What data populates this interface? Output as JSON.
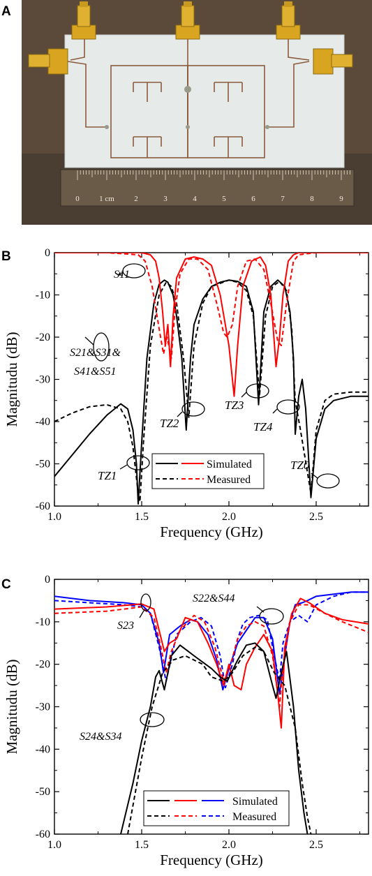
{
  "panels": {
    "a": {
      "letter": "A"
    },
    "b": {
      "letter": "B"
    },
    "c": {
      "letter": "C"
    }
  },
  "photo": {
    "ruler_labels": [
      "0",
      "1 cm",
      "2",
      "3",
      "4",
      "5",
      "6",
      "7",
      "8",
      "9"
    ],
    "colors": {
      "background": "#5b4a3a",
      "board": "#e6ebea",
      "copper": "#8a5a3a",
      "gold": "#d9a520"
    }
  },
  "chart_data": [
    {
      "type": "line",
      "xlabel": "Frequency (GHz)",
      "ylabel": "Magnitudu (dB)",
      "xlim": [
        1.0,
        2.8
      ],
      "ylim": [
        -60,
        0
      ],
      "xticks": [
        1.0,
        1.5,
        2.0,
        2.5
      ],
      "xtick_labels": [
        "1.0",
        "1.5",
        "2.0",
        "2.5"
      ],
      "yticks": [
        0,
        -10,
        -20,
        -30,
        -40,
        -50,
        -60
      ],
      "ytick_labels": [
        "0",
        "-10",
        "-20",
        "-30",
        "-40",
        "-50",
        "-60"
      ],
      "legend": {
        "placement": "bottom-right",
        "entries": [
          "Simulated",
          "Measured"
        ]
      },
      "annotations": {
        "s11": "S11",
        "s21_line1": "S21&S31&",
        "s21_line2": "S41&S51",
        "tz1": "TZ1",
        "tz2": "TZ2",
        "tz3": "TZ3",
        "tz4": "TZ4",
        "tz0": "TZ0"
      },
      "colors": {
        "transmission": "#000000",
        "reflection": "#ff0000"
      },
      "series": [
        {
          "x": [
            1.0,
            1.1,
            1.2,
            1.3,
            1.38,
            1.42,
            1.45,
            1.47,
            1.48,
            1.5,
            1.53,
            1.57,
            1.6,
            1.63,
            1.65,
            1.68,
            1.7,
            1.73,
            1.755,
            1.78,
            1.8,
            1.85,
            1.9,
            1.95,
            2.0,
            2.05,
            2.1,
            2.14,
            2.17,
            2.2,
            2.24,
            2.28,
            2.32,
            2.35,
            2.37,
            2.38,
            2.4,
            2.42,
            2.44,
            2.47,
            2.5,
            2.55,
            2.6,
            2.7,
            2.8
          ],
          "values": [
            -53,
            -48,
            -43,
            -38.5,
            -35.8,
            -37,
            -42,
            -50,
            -59.5,
            -45,
            -25,
            -12,
            -7.5,
            -6.5,
            -7,
            -10,
            -15,
            -25,
            -42,
            -25,
            -17,
            -11,
            -8,
            -7,
            -6.5,
            -6.8,
            -8,
            -14,
            -36,
            -14,
            -8,
            -6.5,
            -8,
            -14,
            -25,
            -43,
            -34,
            -30,
            -37,
            -58,
            -44,
            -37,
            -35,
            -34,
            -34
          ]
        },
        {
          "x": [
            1.0,
            1.1,
            1.2,
            1.3,
            1.38,
            1.42,
            1.45,
            1.48,
            1.49,
            1.51,
            1.55,
            1.6,
            1.64,
            1.67,
            1.7,
            1.74,
            1.77,
            1.8,
            1.85,
            1.9,
            2.0,
            2.05,
            2.1,
            2.14,
            2.175,
            2.21,
            2.25,
            2.29,
            2.33,
            2.36,
            2.38,
            2.41,
            2.45,
            2.47,
            2.5,
            2.55,
            2.6,
            2.7,
            2.8
          ],
          "values": [
            -40,
            -38,
            -36.5,
            -36,
            -37,
            -40,
            -46,
            -57,
            -59,
            -45,
            -22,
            -10,
            -7,
            -8,
            -12,
            -25,
            -39,
            -22,
            -12,
            -8,
            -6.5,
            -7,
            -9,
            -15,
            -34,
            -15,
            -8,
            -6.8,
            -9,
            -18,
            -35,
            -42,
            -52,
            -57,
            -42,
            -35,
            -33.5,
            -33,
            -33
          ]
        },
        {
          "x": [
            1.0,
            1.3,
            1.5,
            1.55,
            1.58,
            1.6,
            1.62,
            1.635,
            1.65,
            1.665,
            1.68,
            1.7,
            1.75,
            1.8,
            1.85,
            1.9,
            1.95,
            2.0,
            2.03,
            2.05,
            2.08,
            2.13,
            2.18,
            2.21,
            2.24,
            2.27,
            2.29,
            2.31,
            2.34,
            2.37,
            2.4,
            2.5,
            2.8
          ],
          "values": [
            0,
            0,
            0,
            -0.5,
            -2,
            -6,
            -14,
            -22,
            -17,
            -27,
            -15,
            -6,
            -1.5,
            -1,
            -1.5,
            -3,
            -10,
            -22,
            -34,
            -22,
            -8,
            -2,
            -1,
            -3,
            -10,
            -27,
            -20,
            -10,
            -2,
            -0.5,
            0,
            0,
            0
          ]
        },
        {
          "x": [
            1.0,
            1.3,
            1.48,
            1.52,
            1.56,
            1.6,
            1.625,
            1.645,
            1.67,
            1.69,
            1.72,
            1.77,
            1.82,
            1.88,
            1.93,
            1.97,
            1.99,
            2.02,
            2.05,
            2.1,
            2.15,
            2.2,
            2.24,
            2.28,
            2.3,
            2.33,
            2.37,
            2.4,
            2.5,
            2.8
          ],
          "values": [
            0,
            0,
            -0.5,
            -2,
            -8,
            -18,
            -24,
            -20,
            -25,
            -14,
            -5,
            -1.5,
            -1.5,
            -4,
            -12,
            -19,
            -20,
            -17,
            -8,
            -2,
            -1.5,
            -4,
            -12,
            -21,
            -22,
            -12,
            -2,
            -0.5,
            0,
            0
          ]
        }
      ]
    },
    {
      "type": "line",
      "xlabel": "Frequency (GHz)",
      "ylabel": "Magnitudu (dB)",
      "xlim": [
        1.0,
        2.8
      ],
      "ylim": [
        -60,
        0
      ],
      "xticks": [
        1.0,
        1.5,
        2.0,
        2.5
      ],
      "xtick_labels": [
        "1.0",
        "1.5",
        "2.0",
        "2.5"
      ],
      "yticks": [
        0,
        -10,
        -20,
        -30,
        -40,
        -50,
        -60
      ],
      "ytick_labels": [
        "0",
        "-10",
        "-20",
        "-30",
        "-40",
        "-50",
        "-60"
      ],
      "legend": {
        "placement": "bottom-right",
        "entries": [
          "Simulated",
          "Measured"
        ]
      },
      "annotations": {
        "s22": "S22&S44",
        "s23": "S23",
        "s24": "S24&S34"
      },
      "colors": {
        "black": "#000000",
        "red": "#ff0000",
        "blue": "#0000ff"
      },
      "series": [
        {
          "x": [
            1.0,
            1.2,
            1.4,
            1.5,
            1.55,
            1.6,
            1.625,
            1.66,
            1.72,
            1.78,
            1.82,
            1.88,
            1.93,
            1.965,
            2.0,
            2.05,
            2.1,
            2.15,
            2.2,
            2.25,
            2.29,
            2.32,
            2.35,
            2.38,
            2.42,
            2.45,
            2.5,
            2.6,
            2.7,
            2.8
          ],
          "values": [
            -4,
            -5,
            -5.5,
            -6,
            -8,
            -15,
            -22,
            -13,
            -11,
            -9.5,
            -10,
            -13,
            -19,
            -26,
            -21,
            -15,
            -12,
            -9,
            -9,
            -14,
            -27,
            -18,
            -10,
            -6,
            -5.5,
            -5,
            -4,
            -3.5,
            -3,
            -3
          ]
        },
        {
          "x": [
            1.0,
            1.2,
            1.4,
            1.5,
            1.55,
            1.6,
            1.64,
            1.7,
            1.78,
            1.84,
            1.9,
            1.95,
            1.98,
            2.02,
            2.05,
            2.08,
            2.12,
            2.17,
            2.22,
            2.26,
            2.29,
            2.31,
            2.35,
            2.4,
            2.45,
            2.5,
            2.6,
            2.7,
            2.8
          ],
          "values": [
            -5,
            -5.5,
            -6,
            -6.5,
            -8,
            -16,
            -24,
            -13,
            -10,
            -9,
            -11,
            -18,
            -25.5,
            -20,
            -14,
            -10.5,
            -9,
            -8.5,
            -9.5,
            -18,
            -24,
            -15,
            -10,
            -8.5,
            -10,
            -6,
            -4,
            -3,
            -3
          ]
        },
        {
          "x": [
            1.0,
            1.3,
            1.5,
            1.57,
            1.6,
            1.63,
            1.66,
            1.7,
            1.75,
            1.82,
            1.88,
            1.93,
            1.97,
            2.0,
            2.03,
            2.07,
            2.1,
            2.15,
            2.2,
            2.25,
            2.28,
            2.3,
            2.32,
            2.36,
            2.41,
            2.46,
            2.55,
            2.65,
            2.8
          ],
          "values": [
            -7,
            -6.5,
            -5.8,
            -7,
            -12,
            -17,
            -15,
            -14,
            -9,
            -10,
            -15,
            -20,
            -25,
            -20,
            -25,
            -26,
            -20,
            -16,
            -13,
            -17,
            -27,
            -35,
            -16,
            -8,
            -4.5,
            -5.5,
            -8,
            -9.5,
            -10.5
          ]
        },
        {
          "x": [
            1.0,
            1.3,
            1.5,
            1.57,
            1.61,
            1.64,
            1.67,
            1.72,
            1.8,
            1.86,
            1.92,
            1.97,
            2.01,
            2.05,
            2.1,
            2.15,
            2.2,
            2.25,
            2.29,
            2.31,
            2.35,
            2.4,
            2.46,
            2.55,
            2.65,
            2.8
          ],
          "values": [
            -8,
            -7.5,
            -6.5,
            -9,
            -16,
            -22,
            -17,
            -12,
            -8.5,
            -10,
            -16,
            -24,
            -20,
            -14,
            -11,
            -10,
            -11,
            -18,
            -30,
            -20,
            -10,
            -6,
            -6,
            -8,
            -10,
            -12.5
          ]
        },
        {
          "x": [
            1.38,
            1.45,
            1.5,
            1.55,
            1.58,
            1.6,
            1.63,
            1.67,
            1.72,
            1.8,
            1.9,
            1.95,
            1.99,
            2.05,
            2.1,
            2.15,
            2.2,
            2.25,
            2.27,
            2.3,
            2.33,
            2.37,
            2.4,
            2.43,
            2.45
          ],
          "values": [
            -60,
            -48,
            -38,
            -30,
            -23,
            -21.5,
            -26,
            -18,
            -15.5,
            -18,
            -21,
            -23,
            -24,
            -19,
            -15.5,
            -15,
            -17,
            -25,
            -28,
            -22,
            -17,
            -30,
            -45,
            -55,
            -60
          ]
        },
        {
          "x": [
            1.42,
            1.5,
            1.56,
            1.62,
            1.68,
            1.75,
            1.85,
            1.9,
            1.97,
            2.02,
            2.08,
            2.15,
            2.2,
            2.26,
            2.32,
            2.38,
            2.42,
            2.45,
            2.47
          ],
          "values": [
            -60,
            -42,
            -30,
            -22,
            -19,
            -18,
            -20,
            -23,
            -24,
            -22,
            -18,
            -16,
            -17,
            -22,
            -25,
            -35,
            -48,
            -56,
            -60
          ]
        }
      ]
    }
  ]
}
